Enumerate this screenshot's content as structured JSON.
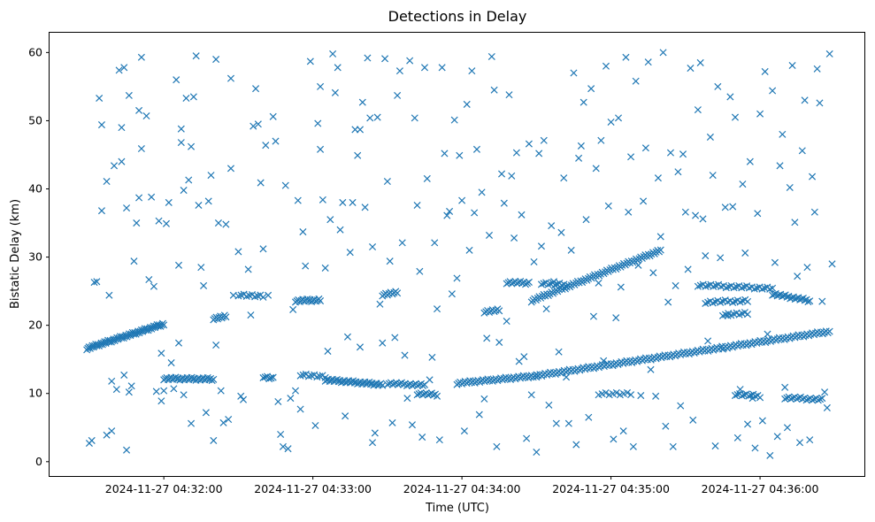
{
  "chart_data": {
    "type": "scatter",
    "title": "Detections in Delay",
    "xlabel": "Time (UTC)",
    "ylabel": "Bistatic Delay (km)",
    "marker": "x",
    "color": "#1f77b4",
    "xlim": [
      "2024-11-27 04:31:14",
      "2024-11-27 04:36:42"
    ],
    "ylim": [
      -2.1,
      62.9
    ],
    "x_ticks": [
      "2024-11-27 04:32:00",
      "2024-11-27 04:33:00",
      "2024-11-27 04:34:00",
      "2024-11-27 04:35:00",
      "2024-11-27 04:36:00"
    ],
    "y_ticks": [
      0,
      10,
      20,
      30,
      40,
      50,
      60
    ],
    "grid": false,
    "time_span": [
      "2024-11-27 04:31:29",
      "2024-11-27 04:36:29"
    ],
    "track_segments": [
      {
        "start": [
          "2024-11-27 04:31:29",
          16.6
        ],
        "end": [
          "2024-11-27 04:32:00",
          20.2
        ],
        "count": 70
      },
      {
        "start": [
          "2024-11-27 04:32:00",
          12.2
        ],
        "end": [
          "2024-11-27 04:32:20",
          12.1
        ],
        "count": 35
      },
      {
        "start": [
          "2024-11-27 04:32:20",
          21.0
        ],
        "end": [
          "2024-11-27 04:32:25",
          21.3
        ],
        "count": 10
      },
      {
        "start": [
          "2024-11-27 04:32:30",
          24.5
        ],
        "end": [
          "2024-11-27 04:32:40",
          24.2
        ],
        "count": 10
      },
      {
        "start": [
          "2024-11-27 04:32:40",
          12.5
        ],
        "end": [
          "2024-11-27 04:32:44",
          12.2
        ],
        "count": 6
      },
      {
        "start": [
          "2024-11-27 04:32:53",
          23.6
        ],
        "end": [
          "2024-11-27 04:33:03",
          23.7
        ],
        "count": 18
      },
      {
        "start": [
          "2024-11-27 04:32:55",
          12.8
        ],
        "end": [
          "2024-11-27 04:33:05",
          12.4
        ],
        "count": 10
      },
      {
        "start": [
          "2024-11-27 04:33:05",
          12.0
        ],
        "end": [
          "2024-11-27 04:33:28",
          11.3
        ],
        "count": 40
      },
      {
        "start": [
          "2024-11-27 04:33:28",
          24.5
        ],
        "end": [
          "2024-11-27 04:33:34",
          24.8
        ],
        "count": 10
      },
      {
        "start": [
          "2024-11-27 04:33:30",
          11.5
        ],
        "end": [
          "2024-11-27 04:33:45",
          11.2
        ],
        "count": 22
      },
      {
        "start": [
          "2024-11-27 04:33:42",
          10.0
        ],
        "end": [
          "2024-11-27 04:33:50",
          9.8
        ],
        "count": 12
      },
      {
        "start": [
          "2024-11-27 04:33:58",
          11.5
        ],
        "end": [
          "2024-11-27 04:34:30",
          12.6
        ],
        "count": 50
      },
      {
        "start": [
          "2024-11-27 04:34:09",
          22.0
        ],
        "end": [
          "2024-11-27 04:34:15",
          22.2
        ],
        "count": 10
      },
      {
        "start": [
          "2024-11-27 04:34:18",
          26.3
        ],
        "end": [
          "2024-11-27 04:34:27",
          26.2
        ],
        "count": 14
      },
      {
        "start": [
          "2024-11-27 04:34:28",
          23.6
        ],
        "end": [
          "2024-11-27 04:35:20",
          31.0
        ],
        "count": 85
      },
      {
        "start": [
          "2024-11-27 04:34:30",
          12.6
        ],
        "end": [
          "2024-11-27 04:36:28",
          19.1
        ],
        "count": 170
      },
      {
        "start": [
          "2024-11-27 04:34:32",
          26.2
        ],
        "end": [
          "2024-11-27 04:34:42",
          25.9
        ],
        "count": 12
      },
      {
        "start": [
          "2024-11-27 04:35:35",
          25.9
        ],
        "end": [
          "2024-11-27 04:36:05",
          25.4
        ],
        "count": 30
      },
      {
        "start": [
          "2024-11-27 04:35:38",
          23.4
        ],
        "end": [
          "2024-11-27 04:35:55",
          23.6
        ],
        "count": 18
      },
      {
        "start": [
          "2024-11-27 04:35:45",
          21.6
        ],
        "end": [
          "2024-11-27 04:35:55",
          21.7
        ],
        "count": 10
      },
      {
        "start": [
          "2024-11-27 04:35:50",
          9.9
        ],
        "end": [
          "2024-11-27 04:36:00",
          9.6
        ],
        "count": 12
      },
      {
        "start": [
          "2024-11-27 04:36:05",
          24.6
        ],
        "end": [
          "2024-11-27 04:36:20",
          23.6
        ],
        "count": 24
      },
      {
        "start": [
          "2024-11-27 04:36:10",
          9.4
        ],
        "end": [
          "2024-11-27 04:36:25",
          9.1
        ],
        "count": 20
      },
      {
        "start": [
          "2024-11-27 04:34:55",
          10.0
        ],
        "end": [
          "2024-11-27 04:35:08",
          9.9
        ],
        "count": 10
      }
    ],
    "scattered_detections": [
      [
        1,
        2.7
      ],
      [
        2,
        3.1
      ],
      [
        3,
        26.3
      ],
      [
        4,
        26.4
      ],
      [
        5,
        53.3
      ],
      [
        6,
        49.4
      ],
      [
        6,
        36.8
      ],
      [
        8,
        3.9
      ],
      [
        8,
        41.1
      ],
      [
        9,
        24.4
      ],
      [
        10,
        4.5
      ],
      [
        10,
        11.8
      ],
      [
        11,
        43.4
      ],
      [
        12,
        10.6
      ],
      [
        13,
        57.4
      ],
      [
        14,
        49.0
      ],
      [
        14,
        44.0
      ],
      [
        15,
        57.8
      ],
      [
        15,
        12.7
      ],
      [
        16,
        1.7
      ],
      [
        16,
        37.2
      ],
      [
        17,
        10.2
      ],
      [
        17,
        53.7
      ],
      [
        18,
        11.1
      ],
      [
        19,
        29.4
      ],
      [
        20,
        35.0
      ],
      [
        21,
        38.7
      ],
      [
        21,
        51.5
      ],
      [
        22,
        59.3
      ],
      [
        22,
        45.9
      ],
      [
        24,
        50.7
      ],
      [
        25,
        26.7
      ],
      [
        26,
        38.8
      ],
      [
        27,
        25.7
      ],
      [
        28,
        10.3
      ],
      [
        29,
        35.3
      ],
      [
        30,
        15.9
      ],
      [
        30,
        8.9
      ],
      [
        31,
        10.4
      ],
      [
        32,
        34.9
      ],
      [
        33,
        38.0
      ],
      [
        34,
        14.5
      ],
      [
        35,
        10.7
      ],
      [
        36,
        56.0
      ],
      [
        37,
        17.4
      ],
      [
        37,
        28.8
      ],
      [
        38,
        46.8
      ],
      [
        38,
        48.8
      ],
      [
        39,
        9.8
      ],
      [
        39,
        39.8
      ],
      [
        40,
        53.3
      ],
      [
        41,
        41.3
      ],
      [
        42,
        46.2
      ],
      [
        42,
        5.6
      ],
      [
        43,
        53.5
      ],
      [
        44,
        59.5
      ],
      [
        45,
        37.6
      ],
      [
        46,
        28.5
      ],
      [
        47,
        25.8
      ],
      [
        48,
        7.2
      ],
      [
        49,
        38.2
      ],
      [
        50,
        42.0
      ],
      [
        51,
        3.1
      ],
      [
        52,
        17.1
      ],
      [
        52,
        59.0
      ],
      [
        53,
        35.0
      ],
      [
        54,
        10.4
      ],
      [
        55,
        5.7
      ],
      [
        56,
        34.8
      ],
      [
        57,
        6.2
      ],
      [
        58,
        43.0
      ],
      [
        58,
        56.2
      ],
      [
        59,
        24.4
      ],
      [
        61,
        30.8
      ],
      [
        62,
        9.6
      ],
      [
        63,
        9.1
      ],
      [
        65,
        28.2
      ],
      [
        66,
        21.5
      ],
      [
        67,
        49.2
      ],
      [
        68,
        54.7
      ],
      [
        69,
        49.5
      ],
      [
        70,
        40.9
      ],
      [
        71,
        31.2
      ],
      [
        72,
        46.4
      ],
      [
        73,
        24.4
      ],
      [
        74,
        12.3
      ],
      [
        75,
        50.6
      ],
      [
        76,
        47.0
      ],
      [
        77,
        8.8
      ],
      [
        78,
        4.0
      ],
      [
        79,
        2.2
      ],
      [
        80,
        40.5
      ],
      [
        81,
        1.9
      ],
      [
        82,
        9.3
      ],
      [
        83,
        22.3
      ],
      [
        84,
        10.4
      ],
      [
        85,
        38.3
      ],
      [
        86,
        7.7
      ],
      [
        87,
        33.7
      ],
      [
        88,
        28.7
      ],
      [
        90,
        58.7
      ],
      [
        92,
        5.3
      ],
      [
        93,
        49.6
      ],
      [
        94,
        45.8
      ],
      [
        94,
        55.0
      ],
      [
        95,
        38.4
      ],
      [
        96,
        28.4
      ],
      [
        97,
        16.2
      ],
      [
        98,
        35.5
      ],
      [
        99,
        59.8
      ],
      [
        100,
        54.1
      ],
      [
        101,
        57.8
      ],
      [
        102,
        34.0
      ],
      [
        103,
        38.0
      ],
      [
        104,
        6.7
      ],
      [
        105,
        18.3
      ],
      [
        106,
        30.7
      ],
      [
        107,
        38.0
      ],
      [
        108,
        48.7
      ],
      [
        109,
        44.9
      ],
      [
        110,
        48.7
      ],
      [
        110,
        16.8
      ],
      [
        111,
        52.7
      ],
      [
        112,
        37.3
      ],
      [
        113,
        59.2
      ],
      [
        114,
        50.4
      ],
      [
        115,
        31.5
      ],
      [
        115,
        2.8
      ],
      [
        116,
        4.2
      ],
      [
        117,
        50.5
      ],
      [
        118,
        23.1
      ],
      [
        119,
        17.4
      ],
      [
        120,
        59.1
      ],
      [
        121,
        41.1
      ],
      [
        122,
        29.4
      ],
      [
        123,
        5.7
      ],
      [
        124,
        18.2
      ],
      [
        125,
        53.7
      ],
      [
        126,
        57.3
      ],
      [
        127,
        32.1
      ],
      [
        128,
        15.6
      ],
      [
        129,
        9.3
      ],
      [
        130,
        58.8
      ],
      [
        131,
        5.4
      ],
      [
        132,
        50.4
      ],
      [
        133,
        37.6
      ],
      [
        134,
        27.9
      ],
      [
        135,
        3.6
      ],
      [
        136,
        57.8
      ],
      [
        137,
        41.5
      ],
      [
        138,
        12.0
      ],
      [
        139,
        15.3
      ],
      [
        140,
        32.1
      ],
      [
        141,
        22.4
      ],
      [
        142,
        3.2
      ],
      [
        143,
        57.8
      ],
      [
        144,
        45.2
      ],
      [
        145,
        36.1
      ],
      [
        146,
        36.7
      ],
      [
        147,
        24.6
      ],
      [
        148,
        50.1
      ],
      [
        149,
        26.9
      ],
      [
        150,
        44.9
      ],
      [
        151,
        38.3
      ],
      [
        152,
        4.5
      ],
      [
        153,
        52.4
      ],
      [
        154,
        31.0
      ],
      [
        155,
        57.3
      ],
      [
        156,
        36.5
      ],
      [
        157,
        45.8
      ],
      [
        158,
        6.9
      ],
      [
        159,
        39.5
      ],
      [
        160,
        9.2
      ],
      [
        161,
        18.1
      ],
      [
        162,
        33.2
      ],
      [
        163,
        59.4
      ],
      [
        164,
        54.5
      ],
      [
        165,
        2.2
      ],
      [
        166,
        17.5
      ],
      [
        167,
        42.2
      ],
      [
        168,
        37.9
      ],
      [
        169,
        20.6
      ],
      [
        170,
        53.8
      ],
      [
        171,
        41.9
      ],
      [
        172,
        32.8
      ],
      [
        173,
        45.3
      ],
      [
        174,
        14.7
      ],
      [
        175,
        36.2
      ],
      [
        176,
        15.4
      ],
      [
        177,
        3.4
      ],
      [
        178,
        46.6
      ],
      [
        179,
        9.8
      ],
      [
        180,
        29.3
      ],
      [
        181,
        1.4
      ],
      [
        182,
        45.2
      ],
      [
        183,
        31.6
      ],
      [
        184,
        47.1
      ],
      [
        185,
        22.4
      ],
      [
        186,
        8.3
      ],
      [
        187,
        34.6
      ],
      [
        188,
        26.4
      ],
      [
        189,
        5.6
      ],
      [
        190,
        16.1
      ],
      [
        191,
        33.6
      ],
      [
        192,
        41.6
      ],
      [
        193,
        12.4
      ],
      [
        194,
        5.6
      ],
      [
        195,
        31.0
      ],
      [
        196,
        57.0
      ],
      [
        197,
        2.5
      ],
      [
        198,
        44.5
      ],
      [
        199,
        46.3
      ],
      [
        200,
        52.7
      ],
      [
        201,
        35.5
      ],
      [
        202,
        6.5
      ],
      [
        203,
        54.7
      ],
      [
        204,
        21.3
      ],
      [
        205,
        43.0
      ],
      [
        206,
        26.2
      ],
      [
        207,
        47.1
      ],
      [
        208,
        14.8
      ],
      [
        209,
        58.0
      ],
      [
        210,
        37.5
      ],
      [
        211,
        49.8
      ],
      [
        212,
        3.3
      ],
      [
        213,
        21.1
      ],
      [
        214,
        50.4
      ],
      [
        215,
        25.6
      ],
      [
        216,
        4.5
      ],
      [
        217,
        59.3
      ],
      [
        218,
        36.6
      ],
      [
        219,
        44.7
      ],
      [
        220,
        2.2
      ],
      [
        221,
        55.8
      ],
      [
        222,
        28.8
      ],
      [
        223,
        9.7
      ],
      [
        224,
        38.2
      ],
      [
        225,
        46.0
      ],
      [
        226,
        58.6
      ],
      [
        227,
        13.5
      ],
      [
        228,
        27.7
      ],
      [
        229,
        9.6
      ],
      [
        230,
        41.6
      ],
      [
        231,
        33.0
      ],
      [
        232,
        60.0
      ],
      [
        233,
        5.2
      ],
      [
        234,
        23.4
      ],
      [
        235,
        45.3
      ],
      [
        236,
        2.2
      ],
      [
        237,
        25.8
      ],
      [
        238,
        42.5
      ],
      [
        239,
        8.2
      ],
      [
        240,
        45.1
      ],
      [
        241,
        36.6
      ],
      [
        242,
        28.2
      ],
      [
        243,
        57.7
      ],
      [
        244,
        6.1
      ],
      [
        245,
        36.1
      ],
      [
        246,
        51.6
      ],
      [
        247,
        58.5
      ],
      [
        248,
        35.6
      ],
      [
        249,
        30.2
      ],
      [
        250,
        17.7
      ],
      [
        251,
        47.6
      ],
      [
        252,
        42.0
      ],
      [
        253,
        2.3
      ],
      [
        254,
        55.0
      ],
      [
        255,
        29.9
      ],
      [
        256,
        16.5
      ],
      [
        257,
        37.3
      ],
      [
        258,
        21.4
      ],
      [
        259,
        53.5
      ],
      [
        260,
        37.4
      ],
      [
        261,
        50.5
      ],
      [
        262,
        3.5
      ],
      [
        263,
        10.6
      ],
      [
        264,
        40.7
      ],
      [
        265,
        30.6
      ],
      [
        266,
        5.5
      ],
      [
        267,
        44.0
      ],
      [
        268,
        9.3
      ],
      [
        269,
        2.0
      ],
      [
        270,
        36.4
      ],
      [
        271,
        51.0
      ],
      [
        272,
        6.0
      ],
      [
        273,
        57.2
      ],
      [
        274,
        18.7
      ],
      [
        275,
        0.9
      ],
      [
        276,
        54.4
      ],
      [
        277,
        29.2
      ],
      [
        278,
        3.7
      ],
      [
        279,
        43.4
      ],
      [
        280,
        48.0
      ],
      [
        281,
        10.9
      ],
      [
        282,
        5.0
      ],
      [
        283,
        40.2
      ],
      [
        284,
        58.1
      ],
      [
        285,
        35.1
      ],
      [
        286,
        27.2
      ],
      [
        287,
        2.8
      ],
      [
        288,
        45.6
      ],
      [
        289,
        53.0
      ],
      [
        290,
        28.5
      ],
      [
        291,
        3.2
      ],
      [
        292,
        41.8
      ],
      [
        293,
        36.6
      ],
      [
        294,
        57.6
      ],
      [
        295,
        52.6
      ],
      [
        296,
        23.5
      ],
      [
        297,
        10.2
      ],
      [
        298,
        7.9
      ],
      [
        299,
        59.8
      ],
      [
        300,
        29.0
      ]
    ]
  }
}
